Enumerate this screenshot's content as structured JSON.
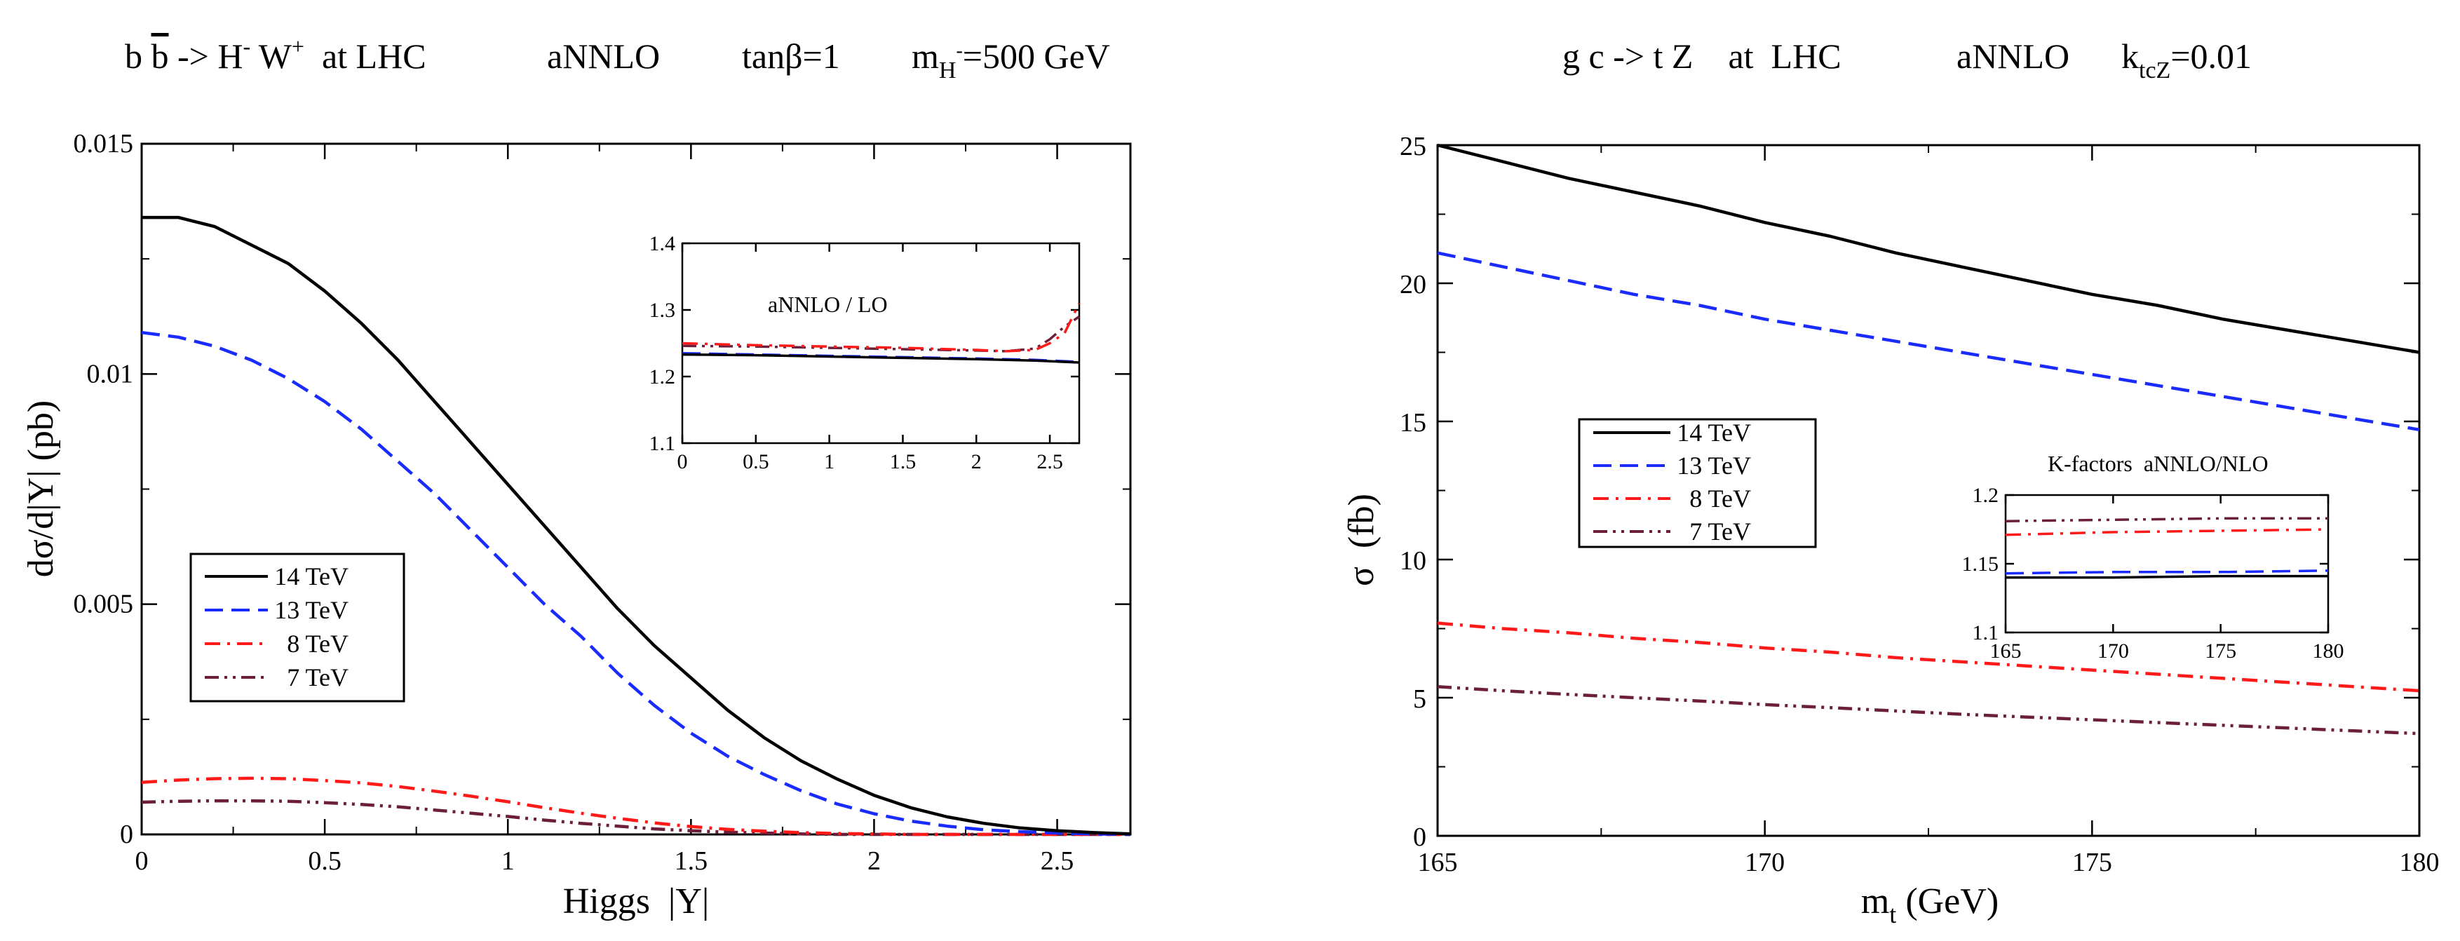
{
  "colors": {
    "14 TeV": "#000000",
    "13 TeV": "#1a2bff",
    "8 TeV": "#ff1a1a",
    "7 TeV": "#6b1f3a"
  },
  "chart_data": [
    {
      "type": "line",
      "title_parts": {
        "process": "b b̄ -> H⁻ W⁺  at LHC",
        "order": "aNNLO",
        "param": "tanβ=1",
        "mass": "m_H⁻=500 GeV"
      },
      "xlabel": "Higgs  |Y|",
      "ylabel": "dσ/d|Y| (pb)",
      "xlim": [
        0,
        2.7
      ],
      "ylim": [
        0,
        0.015
      ],
      "xticks": [
        "0",
        "0.5",
        "1",
        "1.5",
        "2",
        "2.5"
      ],
      "yticks": [
        "0",
        "0.005",
        "0.01",
        "0.015"
      ],
      "legend_position": "left-middle",
      "legend": [
        "14 TeV",
        "13 TeV",
        "8 TeV",
        "7 TeV"
      ],
      "x": [
        0,
        0.1,
        0.2,
        0.3,
        0.4,
        0.5,
        0.6,
        0.7,
        0.8,
        0.9,
        1.0,
        1.1,
        1.2,
        1.3,
        1.4,
        1.5,
        1.6,
        1.7,
        1.8,
        1.9,
        2.0,
        2.1,
        2.2,
        2.3,
        2.4,
        2.5,
        2.6,
        2.7
      ],
      "series": [
        {
          "name": "14 TeV",
          "style": "solid",
          "values": [
            0.0134,
            0.0134,
            0.0132,
            0.0128,
            0.0124,
            0.0118,
            0.0111,
            0.0103,
            0.0094,
            0.0085,
            0.0076,
            0.0067,
            0.0058,
            0.0049,
            0.0041,
            0.0034,
            0.0027,
            0.0021,
            0.0016,
            0.0012,
            0.00085,
            0.00058,
            0.00038,
            0.00024,
            0.00014,
            8e-05,
            4e-05,
            1e-05
          ]
        },
        {
          "name": "13 TeV",
          "style": "dashed",
          "values": [
            0.0109,
            0.0108,
            0.0106,
            0.0103,
            0.0099,
            0.0094,
            0.0088,
            0.0081,
            0.0074,
            0.0066,
            0.0058,
            0.005,
            0.0043,
            0.0035,
            0.0028,
            0.0022,
            0.0017,
            0.0013,
            0.00095,
            0.00066,
            0.00045,
            0.00029,
            0.00018,
            0.0001,
            6e-05,
            3e-05,
            1e-05,
            0.0
          ]
        },
        {
          "name": "8 TeV",
          "style": "dashdot",
          "values": [
            0.00113,
            0.00118,
            0.00121,
            0.00122,
            0.00121,
            0.00117,
            0.00112,
            0.00104,
            0.00094,
            0.00083,
            0.00071,
            0.00058,
            0.00046,
            0.00035,
            0.00025,
            0.00017,
            0.00011,
            7e-05,
            4e-05,
            2e-05,
            1e-05,
            0.0,
            0.0,
            0.0,
            0.0,
            0.0,
            0.0,
            0.0
          ]
        },
        {
          "name": "7 TeV",
          "style": "dashdotdot",
          "values": [
            0.0007,
            0.00072,
            0.00073,
            0.00073,
            0.00072,
            0.00069,
            0.00065,
            0.0006,
            0.00053,
            0.00046,
            0.00039,
            0.00031,
            0.00024,
            0.00018,
            0.00012,
            8e-05,
            5e-05,
            3e-05,
            1e-05,
            0.0,
            0.0,
            0.0,
            0.0,
            0.0,
            0.0,
            0.0,
            0.0,
            0.0
          ]
        }
      ],
      "inset": {
        "label": "aNNLO / LO",
        "xlim": [
          0,
          2.7
        ],
        "ylim": [
          1.1,
          1.4
        ],
        "xticks": [
          "0",
          "0.5",
          "1",
          "1.5",
          "2",
          "2.5"
        ],
        "yticks": [
          "1.1",
          "1.2",
          "1.3",
          "1.4"
        ],
        "x": [
          0,
          0.5,
          1.0,
          1.5,
          2.0,
          2.2,
          2.4,
          2.5,
          2.6,
          2.7
        ],
        "series": [
          {
            "name": "14 TeV",
            "values": [
              1.233,
              1.232,
              1.23,
              1.228,
              1.226,
              1.225,
              1.224,
              1.223,
              1.222,
              1.221
            ]
          },
          {
            "name": "13 TeV",
            "values": [
              1.235,
              1.233,
              1.231,
              1.229,
              1.227,
              1.226,
              1.225,
              1.224,
              1.223,
              1.222
            ]
          },
          {
            "name": "8 TeV",
            "values": [
              1.25,
              1.247,
              1.245,
              1.243,
              1.24,
              1.238,
              1.24,
              1.25,
              1.265,
              1.31
            ]
          },
          {
            "name": "7 TeV",
            "values": [
              1.246,
              1.245,
              1.243,
              1.241,
              1.239,
              1.238,
              1.242,
              1.256,
              1.275,
              1.29
            ]
          }
        ]
      }
    },
    {
      "type": "line",
      "title_parts": {
        "process": "g c -> t Z    at  LHC",
        "order": "aNNLO",
        "param": "k_tcZ=0.01"
      },
      "xlabel": "m_t (GeV)",
      "ylabel": "σ  (fb)",
      "xlim": [
        165,
        180
      ],
      "ylim": [
        0,
        25
      ],
      "xticks": [
        "165",
        "170",
        "175",
        "180"
      ],
      "yticks": [
        "0",
        "5",
        "10",
        "15",
        "20",
        "25"
      ],
      "legend_position": "center-left",
      "legend": [
        "14 TeV",
        "13 TeV",
        "8 TeV",
        "7 TeV"
      ],
      "x": [
        165,
        166,
        167,
        168,
        169,
        170,
        171,
        172,
        173,
        174,
        175,
        176,
        177,
        178,
        179,
        180
      ],
      "series": [
        {
          "name": "14 TeV",
          "style": "solid",
          "values": [
            25.0,
            24.4,
            23.8,
            23.3,
            22.8,
            22.2,
            21.7,
            21.1,
            20.6,
            20.1,
            19.6,
            19.2,
            18.7,
            18.3,
            17.9,
            17.5
          ]
        },
        {
          "name": "13 TeV",
          "style": "dashed",
          "values": [
            21.1,
            20.6,
            20.1,
            19.6,
            19.2,
            18.7,
            18.3,
            17.9,
            17.5,
            17.1,
            16.7,
            16.3,
            15.9,
            15.5,
            15.1,
            14.7
          ]
        },
        {
          "name": "8 TeV",
          "style": "dashdot",
          "values": [
            7.7,
            7.5,
            7.35,
            7.15,
            7.0,
            6.8,
            6.65,
            6.45,
            6.3,
            6.15,
            6.0,
            5.85,
            5.7,
            5.55,
            5.4,
            5.25
          ]
        },
        {
          "name": "7 TeV",
          "style": "dashdotdot",
          "values": [
            5.4,
            5.25,
            5.12,
            5.0,
            4.88,
            4.75,
            4.64,
            4.52,
            4.4,
            4.3,
            4.2,
            4.1,
            4.0,
            3.9,
            3.8,
            3.7
          ]
        }
      ],
      "inset": {
        "label": "K-factors  aNNLO/NLO",
        "xlim": [
          165,
          180
        ],
        "ylim": [
          1.1,
          1.2
        ],
        "xticks": [
          "165",
          "170",
          "175",
          "180"
        ],
        "yticks": [
          "1.1",
          "1.15",
          "1.2"
        ],
        "x": [
          165,
          170,
          175,
          180
        ],
        "series": [
          {
            "name": "14 TeV",
            "values": [
              1.14,
              1.14,
              1.141,
              1.141
            ]
          },
          {
            "name": "13 TeV",
            "values": [
              1.143,
              1.144,
              1.144,
              1.145
            ]
          },
          {
            "name": "8 TeV",
            "values": [
              1.171,
              1.173,
              1.174,
              1.175
            ]
          },
          {
            "name": "7 TeV",
            "values": [
              1.181,
              1.182,
              1.183,
              1.183
            ]
          }
        ]
      }
    }
  ]
}
